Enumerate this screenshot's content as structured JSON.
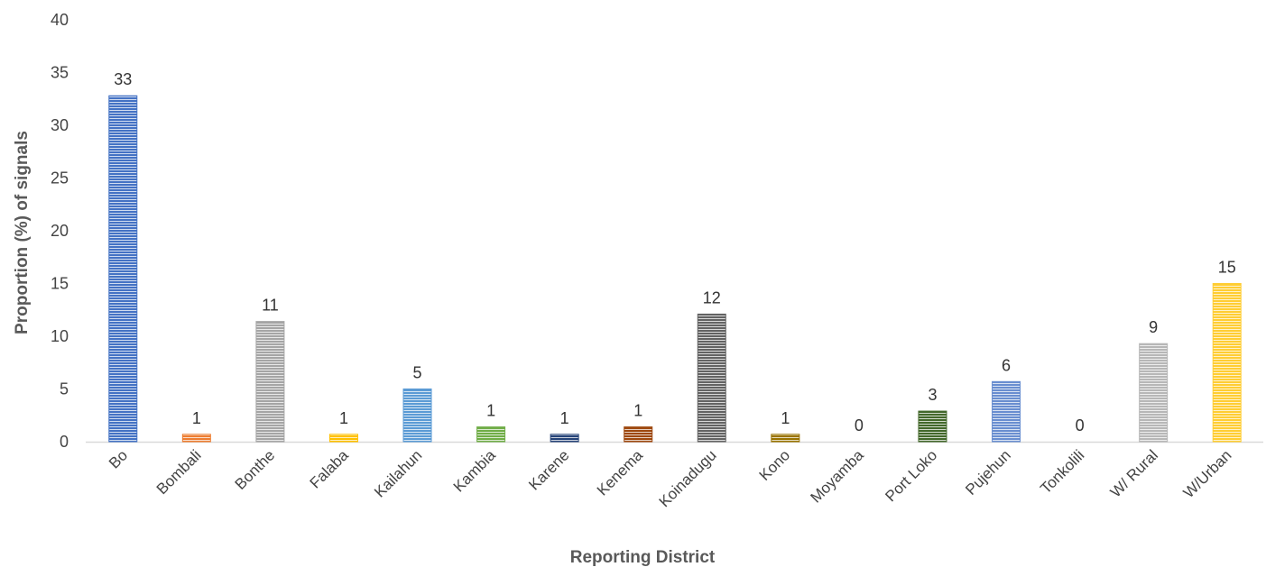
{
  "chart_data": {
    "type": "bar",
    "title": "",
    "xlabel": "Reporting District",
    "ylabel": "Proportion (%)  of signals",
    "ylim": [
      0,
      40
    ],
    "yticks": [
      0,
      5,
      10,
      15,
      20,
      25,
      30,
      35,
      40
    ],
    "grid": false,
    "legend": "none",
    "bar_fill": "horizontal stripes",
    "categories": [
      "Bo",
      "Bombali",
      "Bonthe",
      "Falaba",
      "Kailahun",
      "Kambia",
      "Karene",
      "Kenema",
      "Koinadugu",
      "Kono",
      "Moyamba",
      "Port Loko",
      "Pujehun",
      "Tonkolili",
      "W/ Rural",
      "W/Urban"
    ],
    "values": [
      32.8,
      0.7,
      11.4,
      0.7,
      5.0,
      1.4,
      0.7,
      1.4,
      12.1,
      0.7,
      0,
      2.9,
      5.7,
      0,
      9.3,
      15.0
    ],
    "data_labels": [
      "33",
      "1",
      "11",
      "1",
      "5",
      "1",
      "1",
      "1",
      "12",
      "1",
      "0",
      "3",
      "6",
      "0",
      "9",
      "15"
    ],
    "colors": [
      "#4472C4",
      "#ED7D31",
      "#A5A5A5",
      "#FFC000",
      "#5B9BD5",
      "#70AD47",
      "#264478",
      "#9E480E",
      "#636363",
      "#997300",
      "#255E91",
      "#43682B",
      "#698ED0",
      "#F1975A",
      "#B7B7B7",
      "#FFCD33"
    ]
  }
}
